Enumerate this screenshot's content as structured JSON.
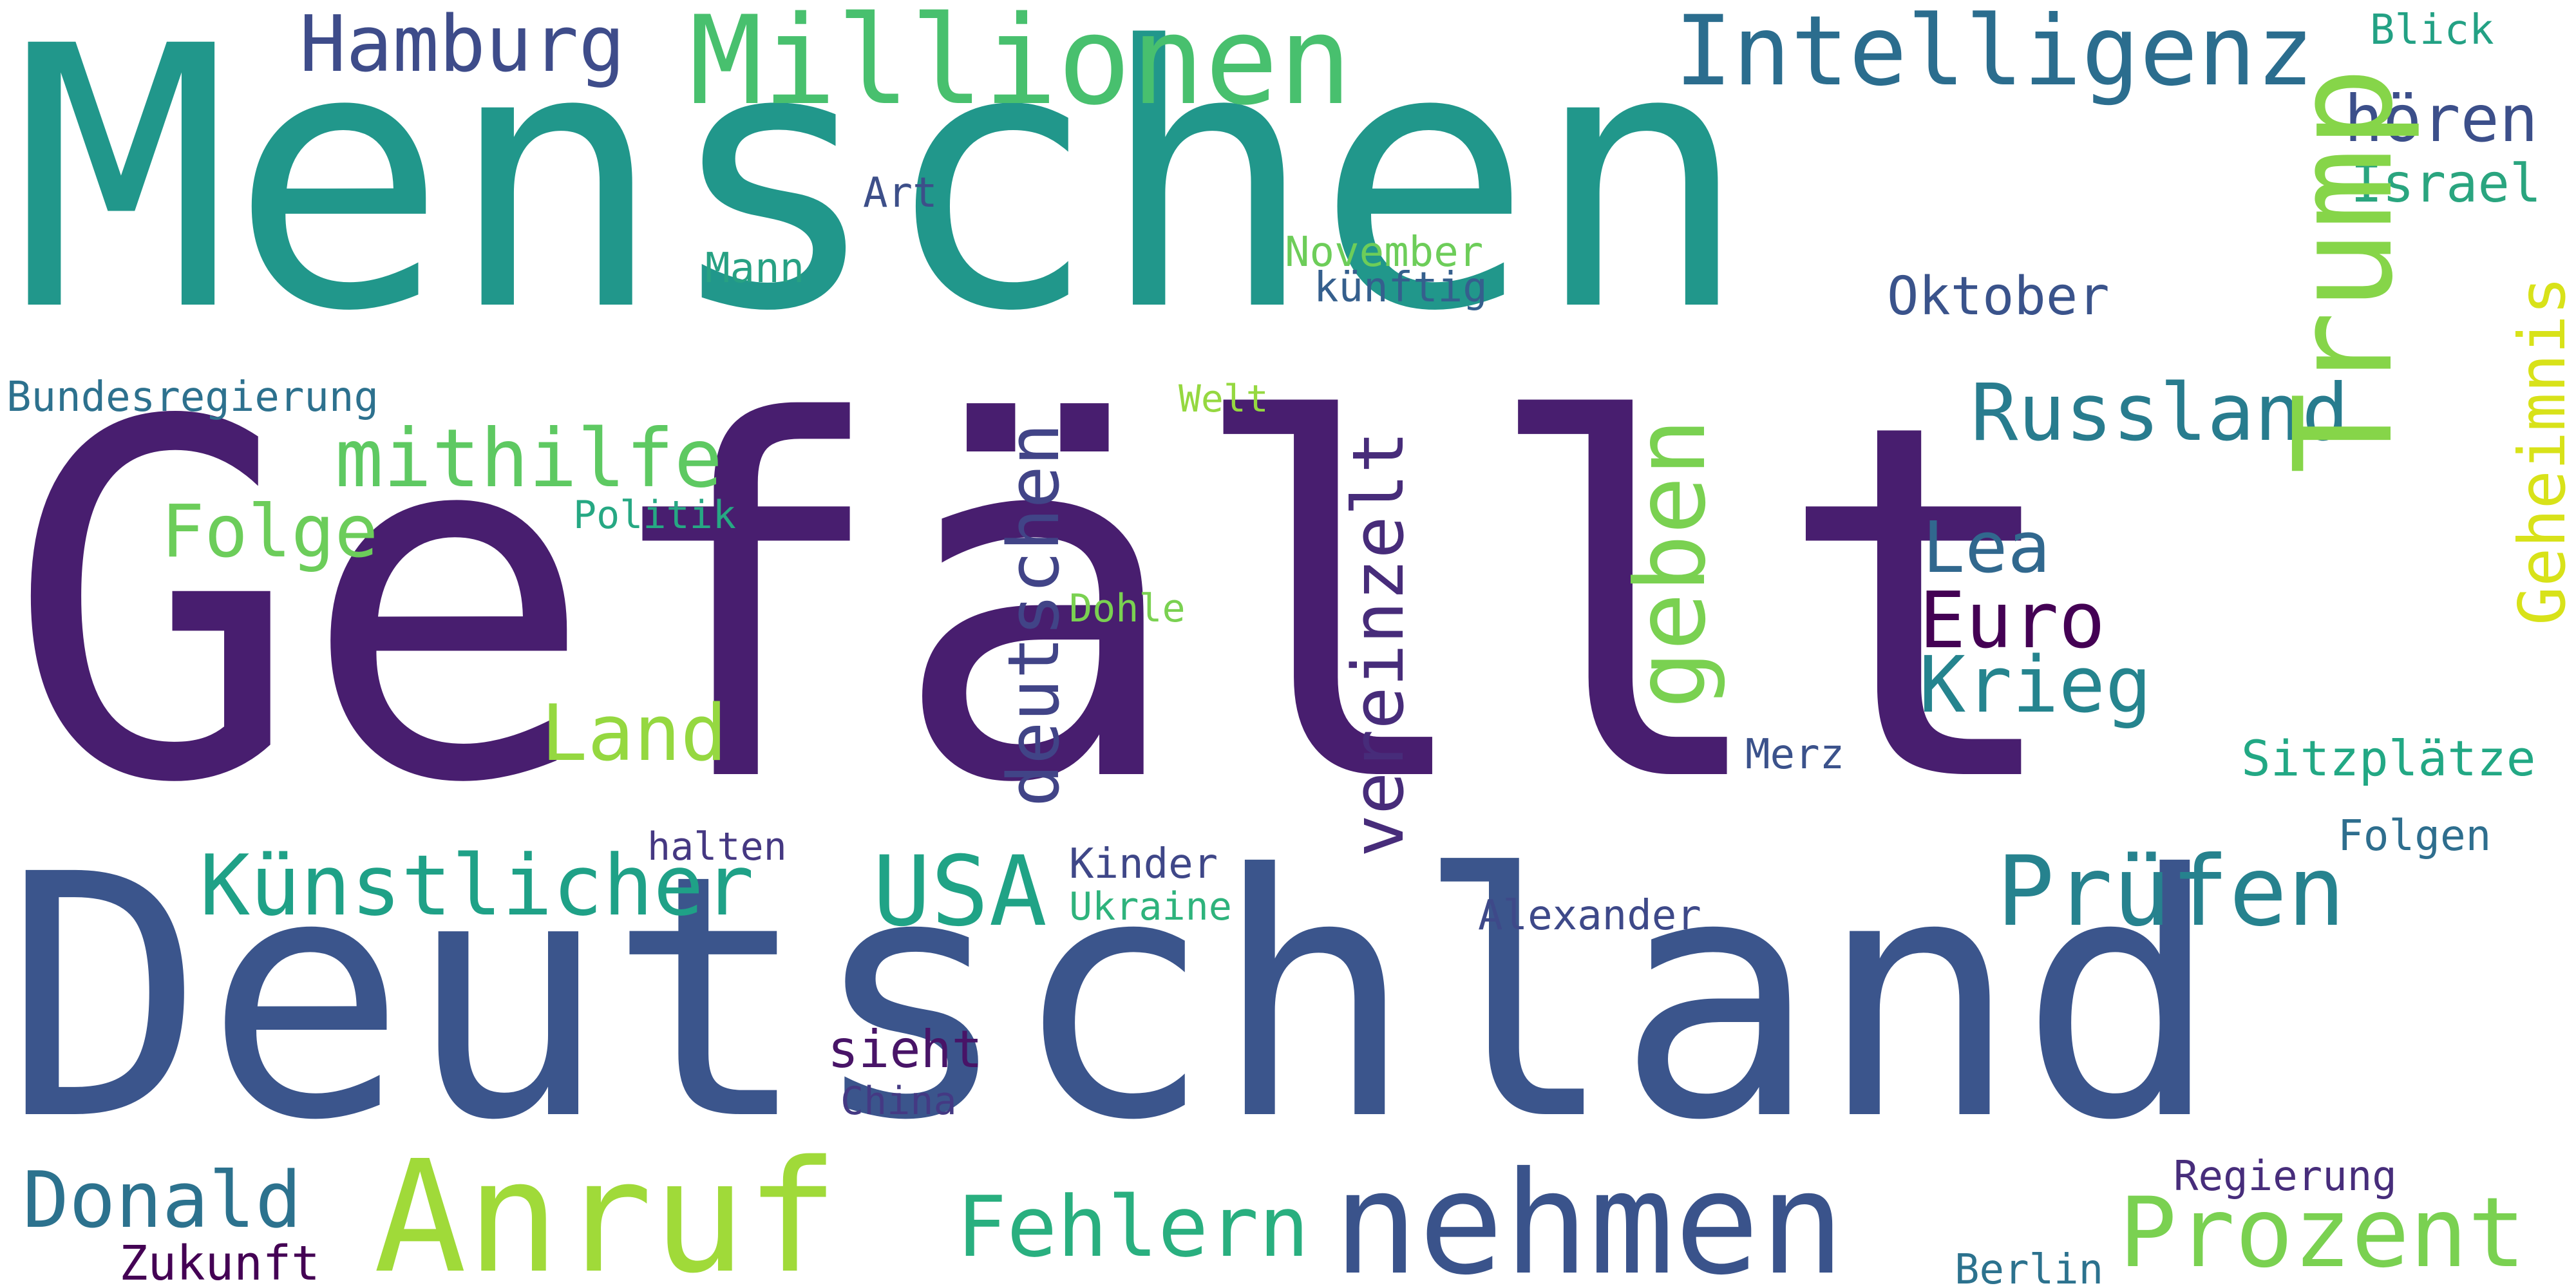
{
  "cloud": {
    "background": "#ffffff",
    "words": [
      {
        "text": "Menschen",
        "color": "#21978b"
      },
      {
        "text": "Gefällt",
        "color": "#481e6f"
      },
      {
        "text": "Deutschland",
        "color": "#3b558c"
      },
      {
        "text": "Millionen",
        "color": "#48c06e"
      },
      {
        "text": "Intelligenz",
        "color": "#2b6d8e"
      },
      {
        "text": "Hamburg",
        "color": "#3e4c8a"
      },
      {
        "text": "Blick",
        "color": "#23a184"
      },
      {
        "text": "hören",
        "color": "#3c4f8a"
      },
      {
        "text": "Israel",
        "color": "#2aa57f"
      },
      {
        "text": "Art",
        "color": "#3d4f89"
      },
      {
        "text": "Mann",
        "color": "#27a183"
      },
      {
        "text": "November",
        "color": "#6dcd59"
      },
      {
        "text": "künftig",
        "color": "#355f8d"
      },
      {
        "text": "Oktober",
        "color": "#3a538b"
      },
      {
        "text": "Trump",
        "color": "#86d549"
      },
      {
        "text": "Geheimnis",
        "color": "#d8e219"
      },
      {
        "text": "Bundesregierung",
        "color": "#2d718e"
      },
      {
        "text": "Welt",
        "color": "#95d840"
      },
      {
        "text": "Russland",
        "color": "#287c8e"
      },
      {
        "text": "mithilfe",
        "color": "#5ec962"
      },
      {
        "text": "Folge",
        "color": "#6ccd5a"
      },
      {
        "text": "Politik",
        "color": "#26a883"
      },
      {
        "text": "deutschen",
        "color": "#414487"
      },
      {
        "text": "vereinzelt",
        "color": "#472c7a"
      },
      {
        "text": "geben",
        "color": "#7ad151"
      },
      {
        "text": "Lea",
        "color": "#31688e"
      },
      {
        "text": "Euro",
        "color": "#440154"
      },
      {
        "text": "Krieg",
        "color": "#25848e"
      },
      {
        "text": "Dohle",
        "color": "#7ad151"
      },
      {
        "text": "Land",
        "color": "#95d840"
      },
      {
        "text": "Merz",
        "color": "#3b528b"
      },
      {
        "text": "Sitzplätze",
        "color": "#22a884"
      },
      {
        "text": "halten",
        "color": "#453882"
      },
      {
        "text": "Kinder",
        "color": "#3f4788"
      },
      {
        "text": "Folgen",
        "color": "#2e6e8e"
      },
      {
        "text": "Künstlicher",
        "color": "#1fa187"
      },
      {
        "text": "USA",
        "color": "#20a386"
      },
      {
        "text": "Ukraine",
        "color": "#2eb37c"
      },
      {
        "text": "Prüfen",
        "color": "#26828e"
      },
      {
        "text": "Alexander",
        "color": "#3e4989"
      },
      {
        "text": "sieht",
        "color": "#481467"
      },
      {
        "text": "China",
        "color": "#443983"
      },
      {
        "text": "Donald",
        "color": "#2c728e"
      },
      {
        "text": "Anruf",
        "color": "#a0da39"
      },
      {
        "text": "nehmen",
        "color": "#3a538b"
      },
      {
        "text": "Fehlern",
        "color": "#29af7f"
      },
      {
        "text": "Regierung",
        "color": "#472d7b"
      },
      {
        "text": "Prozent",
        "color": "#7ad151"
      },
      {
        "text": "Zukunft",
        "color": "#440154"
      },
      {
        "text": "Berlin",
        "color": "#2c728e"
      }
    ]
  }
}
